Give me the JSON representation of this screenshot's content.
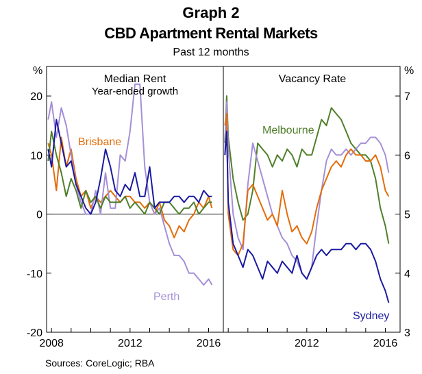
{
  "header": {
    "title": "Graph 2",
    "subtitle": "CBD Apartment Rental Markets",
    "period": "Past 12 months"
  },
  "sources": "Sources:   CoreLogic; RBA",
  "colors": {
    "Melbourne": "#4f7f2a",
    "Brisbane": "#e36c0a",
    "Perth": "#a48fd8",
    "Sydney": "#1a1aa0"
  },
  "chart_data": [
    {
      "type": "line",
      "title": "Median Rent",
      "subtitle": "Year-ended growth",
      "ylabel": "%",
      "ylim": [
        -20,
        25
      ],
      "yticks": [
        -20,
        -10,
        0,
        10,
        20
      ],
      "xlim": [
        2007.75,
        2016.75
      ],
      "xticks": [
        2008,
        2012,
        2016
      ],
      "zero_line": true,
      "series": [
        {
          "name": "Brisbane",
          "x": [
            2007.83,
            2008.0,
            2008.25,
            2008.5,
            2008.75,
            2009.0,
            2009.25,
            2009.5,
            2009.75,
            2010.0,
            2010.25,
            2010.5,
            2010.75,
            2011.0,
            2011.25,
            2011.5,
            2011.75,
            2012.0,
            2012.25,
            2012.5,
            2012.75,
            2013.0,
            2013.25,
            2013.5,
            2013.75,
            2014.0,
            2014.25,
            2014.5,
            2014.75,
            2015.0,
            2015.25,
            2015.5,
            2015.75,
            2016.0,
            2016.17
          ],
          "y": [
            12,
            10,
            4,
            13,
            8,
            11,
            6,
            3,
            4,
            1,
            3,
            2,
            3,
            4,
            3,
            2,
            3,
            3,
            2,
            2,
            1,
            2,
            0,
            2,
            -1,
            -2,
            -4,
            -2,
            -3,
            -1,
            0,
            2,
            1,
            3,
            1
          ]
        },
        {
          "name": "Perth",
          "x": [
            2007.83,
            2008.0,
            2008.25,
            2008.5,
            2008.75,
            2009.0,
            2009.25,
            2009.5,
            2009.75,
            2010.0,
            2010.25,
            2010.5,
            2010.75,
            2011.0,
            2011.25,
            2011.5,
            2011.75,
            2012.0,
            2012.25,
            2012.5,
            2012.75,
            2013.0,
            2013.25,
            2013.5,
            2013.75,
            2014.0,
            2014.25,
            2014.5,
            2014.75,
            2015.0,
            2015.25,
            2015.5,
            2015.75,
            2016.0,
            2016.17
          ],
          "y": [
            16,
            19,
            13,
            18,
            15,
            10,
            5,
            2,
            0,
            0,
            4,
            0,
            7,
            1,
            1,
            10,
            9,
            14,
            22,
            22,
            8,
            2,
            0,
            1,
            -2,
            -5,
            -7,
            -7,
            -8,
            -10,
            -10,
            -11,
            -12,
            -11,
            -12
          ]
        },
        {
          "name": "Melbourne",
          "x": [
            2007.83,
            2008.0,
            2008.25,
            2008.5,
            2008.75,
            2009.0,
            2009.25,
            2009.5,
            2009.75,
            2010.0,
            2010.25,
            2010.5,
            2010.75,
            2011.0,
            2011.25,
            2011.5,
            2011.75,
            2012.0,
            2012.25,
            2012.5,
            2012.75,
            2013.0,
            2013.25,
            2013.5,
            2013.75,
            2014.0,
            2014.25,
            2014.5,
            2014.75,
            2015.0,
            2015.25,
            2015.5,
            2015.75,
            2016.0,
            2016.17
          ],
          "y": [
            9,
            14,
            10,
            7,
            3,
            6,
            4,
            1,
            4,
            2,
            3,
            1,
            3,
            2,
            2,
            2,
            3,
            1,
            2,
            1,
            0,
            2,
            1,
            0,
            2,
            2,
            1,
            0,
            1,
            1,
            2,
            0,
            1,
            2,
            2
          ]
        },
        {
          "name": "Sydney",
          "x": [
            2007.83,
            2008.0,
            2008.25,
            2008.5,
            2008.75,
            2009.0,
            2009.25,
            2009.5,
            2009.75,
            2010.0,
            2010.25,
            2010.5,
            2010.75,
            2011.0,
            2011.25,
            2011.5,
            2011.75,
            2012.0,
            2012.25,
            2012.5,
            2012.75,
            2013.0,
            2013.25,
            2013.5,
            2013.75,
            2014.0,
            2014.25,
            2014.5,
            2014.75,
            2015.0,
            2015.25,
            2015.5,
            2015.75,
            2016.0,
            2016.17
          ],
          "y": [
            11,
            8,
            16,
            12,
            8,
            9,
            5,
            3,
            1,
            0,
            2,
            6,
            11,
            8,
            4,
            3,
            5,
            4,
            7,
            3,
            3,
            8,
            1,
            2,
            2,
            2,
            3,
            3,
            2,
            3,
            3,
            2,
            4,
            3,
            3
          ]
        }
      ]
    },
    {
      "type": "line",
      "title": "Vacancy Rate",
      "ylabel": "%",
      "ylim": [
        3,
        7.5
      ],
      "yticks": [
        3,
        4,
        5,
        6,
        7
      ],
      "xlim": [
        2007.75,
        2016.75
      ],
      "xticks": [
        2012,
        2016
      ],
      "series": [
        {
          "name": "Melbourne",
          "x": [
            2007.83,
            2007.92,
            2008.0,
            2008.25,
            2008.5,
            2008.75,
            2009.0,
            2009.25,
            2009.5,
            2009.75,
            2010.0,
            2010.25,
            2010.5,
            2010.75,
            2011.0,
            2011.25,
            2011.5,
            2011.75,
            2012.0,
            2012.25,
            2012.5,
            2012.75,
            2013.0,
            2013.25,
            2013.5,
            2013.75,
            2014.0,
            2014.25,
            2014.5,
            2014.75,
            2015.0,
            2015.25,
            2015.5,
            2015.75,
            2016.0,
            2016.17
          ],
          "y": [
            6.2,
            7.0,
            6.3,
            5.6,
            5.2,
            4.9,
            5.0,
            5.4,
            6.2,
            6.1,
            6.0,
            5.8,
            6.0,
            5.9,
            6.1,
            6.0,
            5.8,
            6.1,
            6.0,
            6.0,
            6.3,
            6.6,
            6.5,
            6.8,
            6.7,
            6.6,
            6.4,
            6.2,
            6.1,
            6.0,
            6.0,
            5.9,
            5.6,
            5.1,
            4.8,
            4.5
          ]
        },
        {
          "name": "Perth",
          "x": [
            2007.83,
            2007.92,
            2008.0,
            2008.25,
            2008.5,
            2008.75,
            2009.0,
            2009.25,
            2009.5,
            2009.75,
            2010.0,
            2010.25,
            2010.5,
            2010.75,
            2011.0,
            2011.25,
            2011.5,
            2011.75,
            2012.0,
            2012.25,
            2012.5,
            2012.75,
            2013.0,
            2013.25,
            2013.5,
            2013.75,
            2014.0,
            2014.25,
            2014.5,
            2014.75,
            2015.0,
            2015.25,
            2015.5,
            2015.75,
            2016.0,
            2016.17
          ],
          "y": [
            6.0,
            6.9,
            6.1,
            5.0,
            4.6,
            4.4,
            5.5,
            6.2,
            5.9,
            5.6,
            5.3,
            5.0,
            4.8,
            4.6,
            4.5,
            4.3,
            4.2,
            4.0,
            3.9,
            4.1,
            4.8,
            5.4,
            5.9,
            6.1,
            6.0,
            6.0,
            6.1,
            6.0,
            6.1,
            6.2,
            6.2,
            6.3,
            6.3,
            6.2,
            6.0,
            5.7
          ]
        },
        {
          "name": "Brisbane",
          "x": [
            2007.83,
            2007.92,
            2008.0,
            2008.25,
            2008.5,
            2008.75,
            2009.0,
            2009.25,
            2009.5,
            2009.75,
            2010.0,
            2010.25,
            2010.5,
            2010.75,
            2011.0,
            2011.25,
            2011.5,
            2011.75,
            2012.0,
            2012.25,
            2012.5,
            2012.75,
            2013.0,
            2013.25,
            2013.5,
            2013.75,
            2014.0,
            2014.25,
            2014.5,
            2014.75,
            2015.0,
            2015.25,
            2015.5,
            2015.75,
            2016.0,
            2016.17
          ],
          "y": [
            6.5,
            6.7,
            5.0,
            4.4,
            4.3,
            4.5,
            5.4,
            5.5,
            5.3,
            5.1,
            4.9,
            5.0,
            4.8,
            5.4,
            5.0,
            4.7,
            4.8,
            4.6,
            4.5,
            4.7,
            5.1,
            5.4,
            5.6,
            5.8,
            5.9,
            5.8,
            6.0,
            6.1,
            6.0,
            6.0,
            5.9,
            5.9,
            6.0,
            5.8,
            5.4,
            5.3
          ]
        },
        {
          "name": "Sydney",
          "x": [
            2007.83,
            2007.92,
            2008.0,
            2008.25,
            2008.5,
            2008.75,
            2009.0,
            2009.25,
            2009.5,
            2009.75,
            2010.0,
            2010.25,
            2010.5,
            2010.75,
            2011.0,
            2011.25,
            2011.5,
            2011.75,
            2012.0,
            2012.25,
            2012.5,
            2012.75,
            2013.0,
            2013.25,
            2013.5,
            2013.75,
            2014.0,
            2014.25,
            2014.5,
            2014.75,
            2015.0,
            2015.25,
            2015.5,
            2015.75,
            2016.0,
            2016.17
          ],
          "y": [
            6.0,
            6.4,
            5.2,
            4.5,
            4.3,
            4.1,
            4.4,
            4.3,
            4.1,
            3.9,
            4.2,
            4.1,
            4.0,
            4.2,
            4.1,
            4.0,
            4.3,
            4.0,
            3.9,
            4.1,
            4.3,
            4.4,
            4.3,
            4.4,
            4.4,
            4.4,
            4.5,
            4.5,
            4.4,
            4.5,
            4.5,
            4.4,
            4.2,
            3.9,
            3.7,
            3.5
          ]
        }
      ]
    }
  ]
}
